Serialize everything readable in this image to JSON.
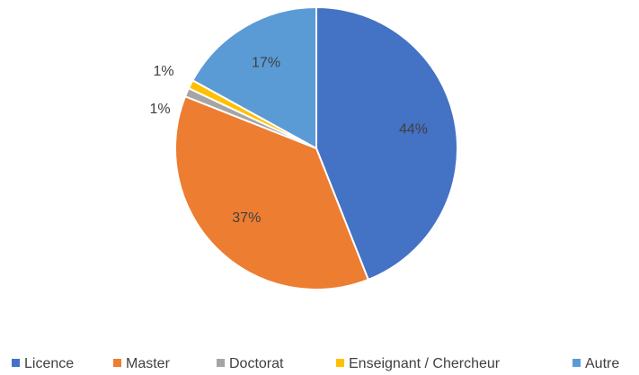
{
  "chart_data": {
    "type": "pie",
    "categories": [
      "Licence",
      "Master",
      "Doctorat",
      "Enseignant / Chercheur",
      "Autre"
    ],
    "values": [
      44,
      37,
      1,
      1,
      17
    ],
    "value_labels": [
      "44%",
      "37%",
      "1%",
      "1%",
      "17%"
    ],
    "colors": [
      "#4472c4",
      "#ed7d31",
      "#a5a5a5",
      "#ffc000",
      "#5b9bd5"
    ],
    "legend": "bottom"
  }
}
